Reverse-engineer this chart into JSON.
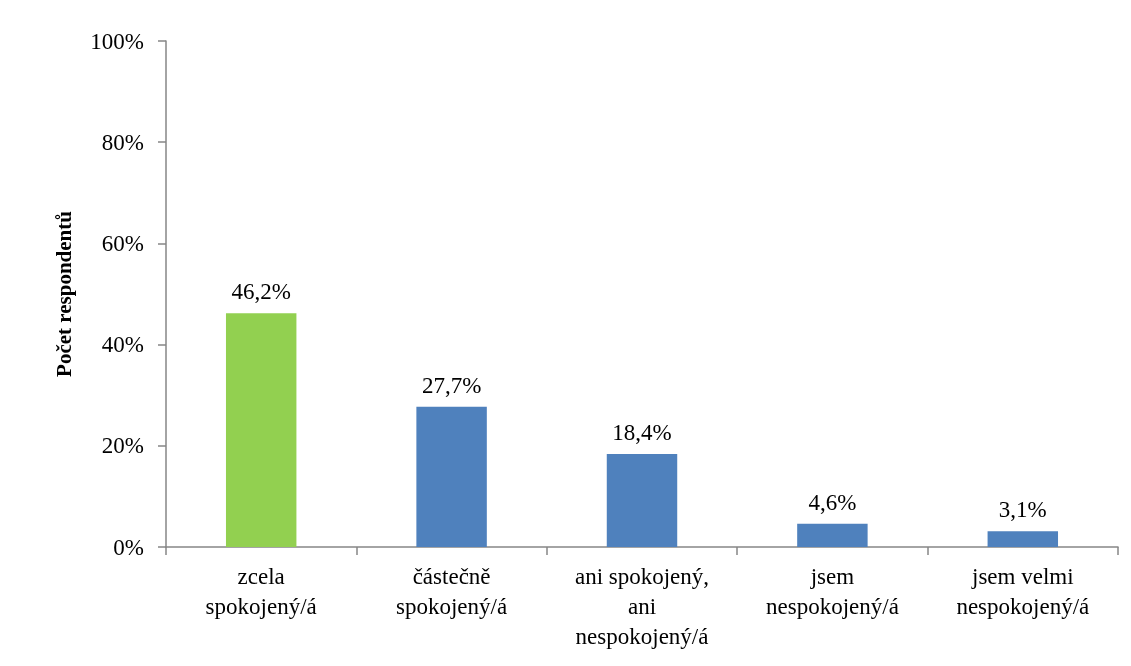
{
  "chart_data": {
    "type": "bar",
    "ylabel": "Počet respondentů",
    "categories": [
      "zcela spokojený/á",
      "částečně spokojený/á",
      "ani spokojený, ani nespokojený/á",
      "jsem nespokojený/á",
      "jsem velmi nespokojený/á"
    ],
    "values": [
      46.2,
      27.7,
      18.4,
      4.6,
      3.1
    ],
    "colors": [
      "#92d050",
      "#4f81bd",
      "#4f81bd",
      "#4f81bd",
      "#4f81bd"
    ],
    "value_labels": [
      "46,2%",
      "27,7%",
      "18,4%",
      "4,6%",
      "3,1%"
    ],
    "ylim": [
      0,
      100
    ],
    "yticks": [
      {
        "value": 0,
        "label": "0%"
      },
      {
        "value": 20,
        "label": "20%"
      },
      {
        "value": 40,
        "label": "40%"
      },
      {
        "value": 60,
        "label": "60%"
      },
      {
        "value": 80,
        "label": "80%"
      },
      {
        "value": 100,
        "label": "100%"
      }
    ]
  }
}
